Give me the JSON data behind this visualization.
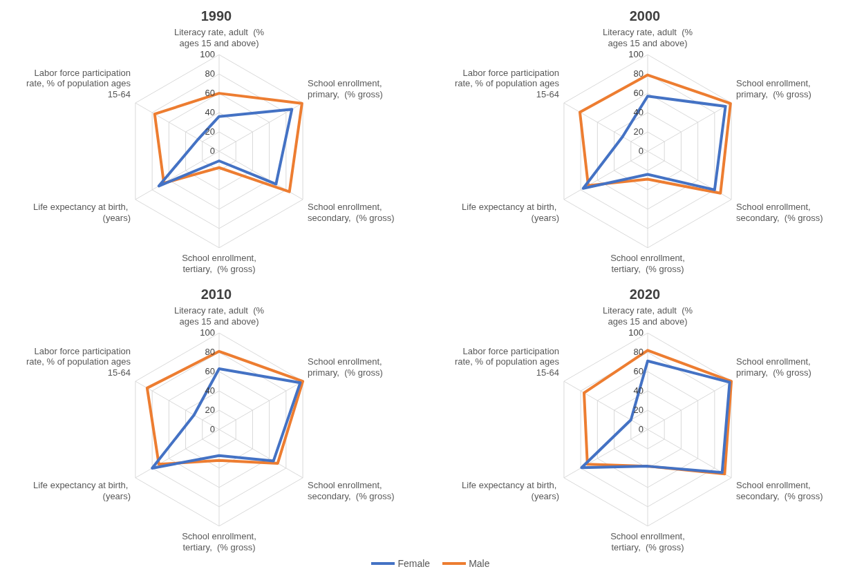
{
  "chart_data": [
    {
      "type": "radar",
      "title": "1990",
      "categories": [
        "Literacy rate, adult  (% ages 15 and above)",
        "School enrollment, primary,  (% gross)",
        "School enrollment, secondary,  (% gross)",
        "School enrollment, tertiary,  (% gross)",
        "Life expectancy at birth,  (years)",
        "Labor force participation rate, % of population ages 15-64"
      ],
      "ylim": [
        0,
        100
      ],
      "yticks": [
        0,
        20,
        40,
        60,
        80,
        100
      ],
      "grid": true,
      "marker": "none",
      "legend": "bottom",
      "series": [
        {
          "name": "Female",
          "color": "#4472c4",
          "values": [
            36,
            87,
            68,
            10,
            72,
            25
          ]
        },
        {
          "name": "Male",
          "color": "#ed7d31",
          "values": [
            60,
            99,
            84,
            17,
            66,
            77
          ]
        }
      ]
    },
    {
      "type": "radar",
      "title": "2000",
      "categories": [
        "Literacy rate, adult  (% ages 15 and above)",
        "School enrollment, primary,  (% gross)",
        "School enrollment, secondary,  (% gross)",
        "School enrollment, tertiary,  (% gross)",
        "Life expectancy at birth,  (years)",
        "Labor force participation rate, % of population ages 15-64"
      ],
      "ylim": [
        0,
        100
      ],
      "yticks": [
        0,
        20,
        40,
        60,
        80,
        100
      ],
      "grid": true,
      "marker": "none",
      "series": [
        {
          "color": "#4472c4",
          "values": [
            57,
            93,
            80,
            24,
            77,
            30
          ]
        },
        {
          "color": "#ed7d31",
          "values": [
            79,
            99,
            87,
            29,
            71,
            81
          ]
        }
      ]
    },
    {
      "type": "radar",
      "title": "2010",
      "categories": [
        "Literacy rate, adult  (% ages 15 and above)",
        "School enrollment, primary,  (% gross)",
        "School enrollment, secondary,  (% gross)",
        "School enrollment, tertiary,  (% gross)",
        "Life expectancy at birth,  (years)",
        "Labor force participation rate, % of population ages 15-64"
      ],
      "ylim": [
        0,
        100
      ],
      "yticks": [
        0,
        20,
        40,
        60,
        80,
        100
      ],
      "grid": true,
      "marker": "none",
      "series": [
        {
          "color": "#4472c4",
          "values": [
            63,
            97,
            65,
            27,
            80,
            30
          ]
        },
        {
          "color": "#ed7d31",
          "values": [
            81,
            100,
            70,
            32,
            72,
            86
          ]
        }
      ]
    },
    {
      "type": "radar",
      "title": "2020",
      "categories": [
        "Literacy rate, adult  (% ages 15 and above)",
        "School enrollment, primary,  (% gross)",
        "School enrollment, secondary,  (% gross)",
        "School enrollment, tertiary,  (% gross)",
        "Life expectancy at birth,  (years)",
        "Labor force participation rate, % of population ages 15-64"
      ],
      "ylim": [
        0,
        100
      ],
      "yticks": [
        0,
        20,
        40,
        60,
        80,
        100
      ],
      "grid": true,
      "marker": "none",
      "series": [
        {
          "color": "#4472c4",
          "values": [
            71,
            98,
            89,
            38,
            79,
            20
          ]
        },
        {
          "color": "#ed7d31",
          "values": [
            82,
            100,
            92,
            38,
            72,
            76
          ]
        }
      ]
    }
  ]
}
